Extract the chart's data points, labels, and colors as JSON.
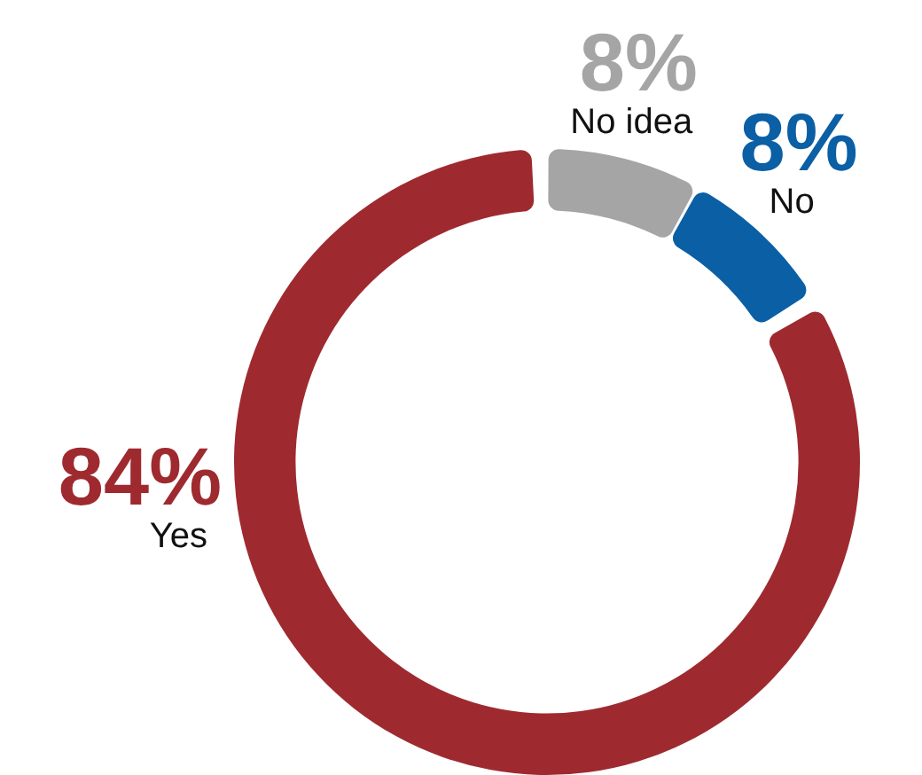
{
  "chart_data": {
    "type": "donut",
    "categories": [
      "No idea",
      "No",
      "Yes"
    ],
    "values": [
      8,
      8,
      84
    ],
    "value_labels": [
      "8%",
      "8%",
      "84%"
    ],
    "colors": [
      "#a5a5a5",
      "#0b5fa5",
      "#9e2a2f"
    ],
    "legend": false
  }
}
